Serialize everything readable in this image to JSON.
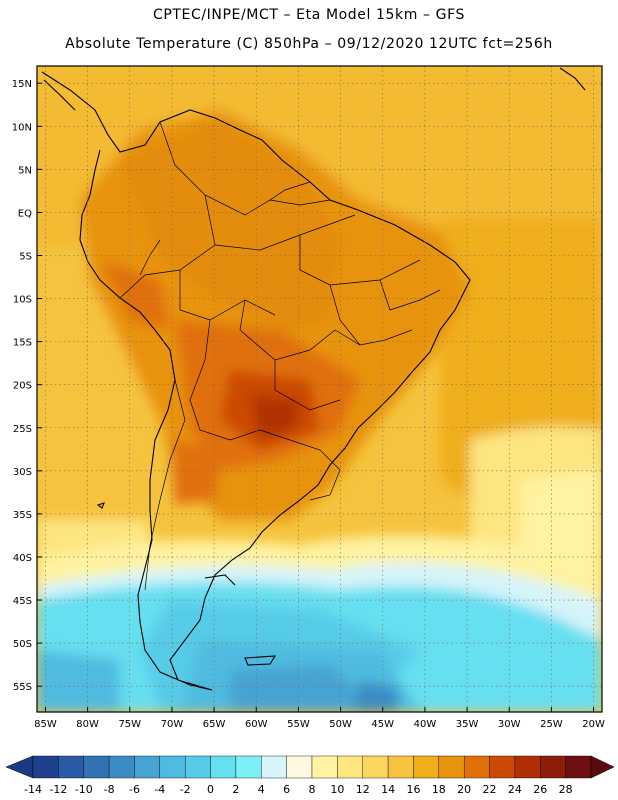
{
  "header": {
    "line1": "CPTEC/INPE/MCT –  Eta Model 15km – GFS",
    "line2": "Absolute Temperature (C) 850hPa – 09/12/2020 12UTC fct=256h"
  },
  "map": {
    "lat_labels": [
      "15N",
      "10N",
      "5N",
      "EQ",
      "5S",
      "10S",
      "15S",
      "20S",
      "25S",
      "30S",
      "35S",
      "40S",
      "45S",
      "50S",
      "55S"
    ],
    "lat_values": [
      15,
      10,
      5,
      0,
      -5,
      -10,
      -15,
      -20,
      -25,
      -30,
      -35,
      -40,
      -45,
      -50,
      -55
    ],
    "lon_labels": [
      "85W",
      "80W",
      "75W",
      "70W",
      "65W",
      "60W",
      "55W",
      "50W",
      "45W",
      "40W",
      "35W",
      "30W",
      "25W",
      "20W"
    ],
    "lon_values": [
      -85,
      -80,
      -75,
      -70,
      -65,
      -60,
      -55,
      -50,
      -45,
      -40,
      -35,
      -30,
      -25,
      -20
    ],
    "extent": {
      "lon_min": -86,
      "lon_max": -19,
      "lat_min": -58,
      "lat_max": 17
    }
  },
  "colorbar": {
    "labels": [
      "-14",
      "-12",
      "-10",
      "-8",
      "-6",
      "-4",
      "-2",
      "0",
      "2",
      "4",
      "6",
      "8",
      "10",
      "12",
      "14",
      "16",
      "18",
      "20",
      "22",
      "24",
      "26",
      "28"
    ],
    "colors": [
      "#1f3f8f",
      "#2b5aa6",
      "#3373b5",
      "#3b8bc4",
      "#46a3d3",
      "#50bbe0",
      "#57cce8",
      "#66dff0",
      "#7bf0f5",
      "#d6f4fa",
      "#fff8e0",
      "#fff2a0",
      "#fde580",
      "#fbd55f",
      "#f5c33d",
      "#efae1a",
      "#e8930f",
      "#e0700a",
      "#cc4a06",
      "#b03005",
      "#8e1e0a",
      "#6f1010"
    ],
    "under_color": "#1b3a85",
    "over_color": "#5c0a12"
  }
}
